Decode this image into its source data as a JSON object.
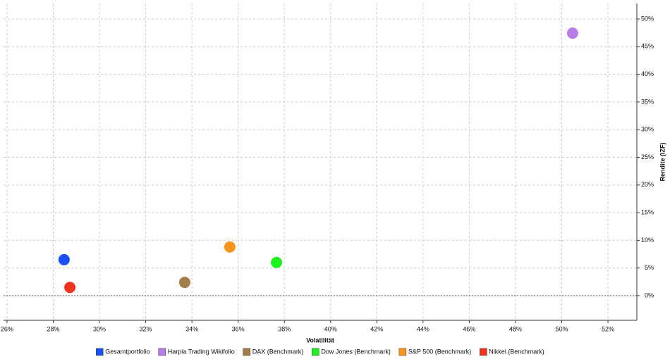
{
  "chart_data": {
    "type": "scatter",
    "x_label": "Volatilität",
    "y_label": "Rendite (IZF)",
    "xlim": [
      25.85,
      53.25
    ],
    "ylim": [
      -4.45,
      52.8
    ],
    "xticks": [
      {
        "value": 26,
        "label": "26%"
      },
      {
        "value": 28,
        "label": "28%"
      },
      {
        "value": 30,
        "label": "30%"
      },
      {
        "value": 32,
        "label": "32%"
      },
      {
        "value": 34,
        "label": "34%"
      },
      {
        "value": 36,
        "label": "36%"
      },
      {
        "value": 38,
        "label": "38%"
      },
      {
        "value": 40,
        "label": "40%"
      },
      {
        "value": 42,
        "label": "42%"
      },
      {
        "value": 44,
        "label": "44%"
      },
      {
        "value": 46,
        "label": "46%"
      },
      {
        "value": 48,
        "label": "48%"
      },
      {
        "value": 50,
        "label": "50%"
      },
      {
        "value": 52,
        "label": "52%"
      }
    ],
    "yticks": [
      {
        "value": 0,
        "label": "0%"
      },
      {
        "value": 5,
        "label": "5%"
      },
      {
        "value": 10,
        "label": "10%"
      },
      {
        "value": 15,
        "label": "15%"
      },
      {
        "value": 20,
        "label": "20%"
      },
      {
        "value": 25,
        "label": "25%"
      },
      {
        "value": 30,
        "label": "30%"
      },
      {
        "value": 35,
        "label": "35%"
      },
      {
        "value": 40,
        "label": "40%"
      },
      {
        "value": 45,
        "label": "45%"
      },
      {
        "value": 50,
        "label": "50%"
      }
    ],
    "grid": true,
    "zero_line": true,
    "y_axis_side": "right",
    "legend": "bottom",
    "series": [
      {
        "name": "Gesamtportfolio",
        "color": "#1a4ff5",
        "x": [
          28.47
        ],
        "y": [
          6.5
        ]
      },
      {
        "name": "Harpia Trading Wikifolio",
        "color": "#b57ee8",
        "x": [
          50.47
        ],
        "y": [
          47.45
        ]
      },
      {
        "name": "DAX (Benchmark)",
        "color": "#a57c4a",
        "x": [
          33.69
        ],
        "y": [
          2.4
        ]
      },
      {
        "name": "Dow Jones (Benchmark)",
        "color": "#1ef21e",
        "x": [
          37.66
        ],
        "y": [
          6.0
        ]
      },
      {
        "name": "S&P 500 (Benchmark)",
        "color": "#f7941d",
        "x": [
          35.64
        ],
        "y": [
          8.8
        ]
      },
      {
        "name": "Nikkei (Benchmark)",
        "color": "#f0321e",
        "x": [
          28.72
        ],
        "y": [
          1.5
        ]
      }
    ]
  }
}
